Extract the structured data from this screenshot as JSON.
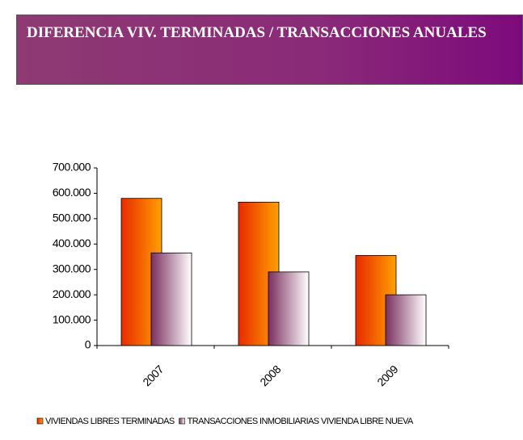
{
  "chart_data": {
    "type": "bar",
    "title": "DIFERENCIA VIV. TERMINADAS / TRANSACCIONES ANUALES",
    "categories": [
      "2007",
      "2008",
      "2009"
    ],
    "series": [
      {
        "name": "VIVIENDAS LIBRES TERMINADAS",
        "color": "#e82a00",
        "values": [
          580000,
          565000,
          355000
        ]
      },
      {
        "name": "TRANSACCIONES INMOBILIARIAS VIVIENDA LIBRE NUEVA",
        "color": "#7a2f5e",
        "values": [
          365000,
          290000,
          200000
        ]
      }
    ],
    "ylim": [
      0,
      700000
    ],
    "yticks": [
      0,
      {
        "value": 100000,
        "label": "100.000"
      },
      {
        "value": 200000,
        "label": "200.000"
      },
      {
        "value": 300000,
        "label": "300.000"
      },
      {
        "value": 400000,
        "label": "400.000"
      },
      {
        "value": 500000,
        "label": "500.000"
      },
      {
        "value": 600000,
        "label": "600.000"
      },
      {
        "value": 700000,
        "label": "700.000"
      }
    ],
    "legend": "bottom"
  }
}
